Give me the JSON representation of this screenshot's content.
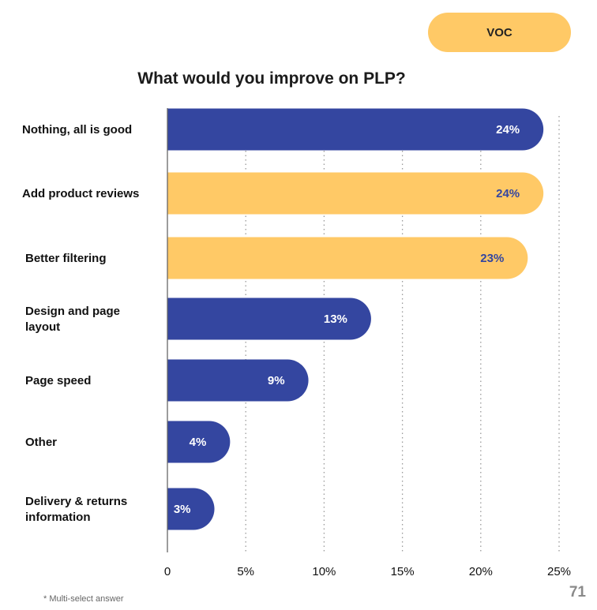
{
  "badge": "VOC",
  "footnote": "* Multi-select answer",
  "page_number": "71",
  "colors": {
    "blue": "#3446a0",
    "yellow": "#ffc966"
  },
  "chart_data": {
    "type": "bar",
    "orientation": "horizontal",
    "title": "What would you improve on PLP?",
    "categories": [
      [
        "Nothing, all is good"
      ],
      [
        "Add product reviews"
      ],
      [
        "Better filtering"
      ],
      [
        "Design and page",
        "layout"
      ],
      [
        "Page speed"
      ],
      [
        "Other"
      ],
      [
        "Delivery & returns",
        "information"
      ]
    ],
    "values": [
      24,
      24,
      23,
      13,
      9,
      4,
      3
    ],
    "value_labels": [
      "24%",
      "24%",
      "23%",
      "13%",
      "9%",
      "4%",
      "3%"
    ],
    "bar_colors": [
      "blue",
      "yellow",
      "yellow",
      "blue",
      "blue",
      "blue",
      "blue"
    ],
    "xlim": [
      0,
      25
    ],
    "xticks": [
      0,
      5,
      10,
      15,
      20,
      25
    ],
    "xtick_labels": [
      "0",
      "5%",
      "10%",
      "15%",
      "20%",
      "25%"
    ],
    "grid": "vertical-dotted"
  }
}
